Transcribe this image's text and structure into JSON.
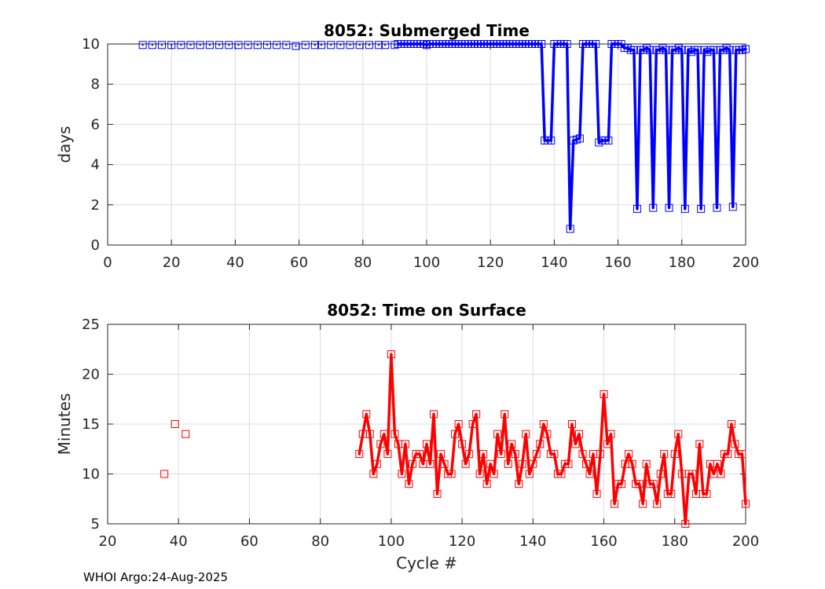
{
  "footer": "WHOI Argo:24-Aug-2025",
  "chart_data": [
    {
      "type": "line",
      "title": "8052: Submerged Time",
      "xlabel": "",
      "ylabel": "days",
      "xlim": [
        0,
        200
      ],
      "ylim": [
        0,
        10
      ],
      "xticks": [
        0,
        20,
        40,
        60,
        80,
        100,
        120,
        140,
        160,
        180,
        200
      ],
      "yticks": [
        0,
        2,
        4,
        6,
        8,
        10
      ],
      "grid": true,
      "color": "#0000ff",
      "marker": "square",
      "isolated_points": [
        [
          11,
          9.95
        ],
        [
          14,
          9.95
        ],
        [
          17,
          9.95
        ],
        [
          20,
          9.95
        ],
        [
          23,
          9.95
        ],
        [
          26,
          9.95
        ],
        [
          29,
          9.95
        ],
        [
          32,
          9.95
        ],
        [
          35,
          9.95
        ],
        [
          38,
          9.95
        ],
        [
          41,
          9.95
        ],
        [
          44,
          9.95
        ],
        [
          47,
          9.95
        ],
        [
          50,
          9.95
        ],
        [
          53,
          9.95
        ],
        [
          56,
          9.95
        ],
        [
          59,
          9.9
        ],
        [
          62,
          9.95
        ],
        [
          65,
          9.95
        ],
        [
          67,
          9.95
        ],
        [
          70,
          9.95
        ],
        [
          73,
          9.95
        ],
        [
          76,
          9.95
        ],
        [
          79,
          9.95
        ],
        [
          82,
          9.95
        ],
        [
          85,
          9.95
        ],
        [
          87,
          9.95
        ],
        [
          90,
          9.95
        ]
      ],
      "series": [
        [
          91,
          10
        ],
        [
          92,
          10
        ],
        [
          93,
          10
        ],
        [
          94,
          10
        ],
        [
          95,
          10
        ],
        [
          96,
          10
        ],
        [
          97,
          10
        ],
        [
          98,
          10
        ],
        [
          99,
          10
        ],
        [
          100,
          9.95
        ],
        [
          101,
          10
        ],
        [
          102,
          10
        ],
        [
          103,
          10
        ],
        [
          104,
          10
        ],
        [
          105,
          10
        ],
        [
          106,
          10
        ],
        [
          107,
          10
        ],
        [
          108,
          10
        ],
        [
          109,
          10
        ],
        [
          110,
          10
        ],
        [
          111,
          10
        ],
        [
          112,
          10
        ],
        [
          113,
          10
        ],
        [
          114,
          10
        ],
        [
          115,
          10
        ],
        [
          116,
          10
        ],
        [
          117,
          10
        ],
        [
          118,
          10
        ],
        [
          119,
          10
        ],
        [
          120,
          10
        ],
        [
          121,
          10
        ],
        [
          122,
          10
        ],
        [
          123,
          10
        ],
        [
          124,
          10
        ],
        [
          125,
          10
        ],
        [
          126,
          10
        ],
        [
          127,
          10
        ],
        [
          128,
          10
        ],
        [
          129,
          10
        ],
        [
          130,
          10
        ],
        [
          131,
          10
        ],
        [
          132,
          10
        ],
        [
          133,
          10
        ],
        [
          134,
          10
        ],
        [
          135,
          10
        ],
        [
          136,
          10
        ],
        [
          137,
          5.2
        ],
        [
          138,
          5.2
        ],
        [
          139,
          5.2
        ],
        [
          140,
          10
        ],
        [
          141,
          10
        ],
        [
          142,
          10
        ],
        [
          143,
          10
        ],
        [
          144,
          10
        ],
        [
          145,
          0.8
        ],
        [
          146,
          5.2
        ],
        [
          147,
          5.25
        ],
        [
          148,
          5.3
        ],
        [
          149,
          10
        ],
        [
          150,
          10
        ],
        [
          151,
          10
        ],
        [
          152,
          10
        ],
        [
          153,
          10
        ],
        [
          154,
          5.1
        ],
        [
          155,
          5.2
        ],
        [
          156,
          5.2
        ],
        [
          157,
          5.2
        ],
        [
          158,
          10
        ],
        [
          159,
          10
        ],
        [
          160,
          10
        ],
        [
          161,
          10
        ],
        [
          162,
          9.8
        ],
        [
          163,
          9.8
        ],
        [
          164,
          9.7
        ],
        [
          165,
          9.7
        ],
        [
          166,
          1.8
        ],
        [
          167,
          9.7
        ],
        [
          168,
          9.7
        ],
        [
          169,
          9.8
        ],
        [
          170,
          9.7
        ],
        [
          171,
          1.85
        ],
        [
          172,
          9.7
        ],
        [
          173,
          9.7
        ],
        [
          174,
          9.8
        ],
        [
          175,
          9.7
        ],
        [
          176,
          1.85
        ],
        [
          177,
          9.7
        ],
        [
          178,
          9.7
        ],
        [
          179,
          9.8
        ],
        [
          180,
          9.7
        ],
        [
          181,
          1.8
        ],
        [
          182,
          9.7
        ],
        [
          183,
          9.6
        ],
        [
          184,
          9.7
        ],
        [
          185,
          9.7
        ],
        [
          186,
          1.8
        ],
        [
          187,
          9.7
        ],
        [
          188,
          9.6
        ],
        [
          189,
          9.7
        ],
        [
          190,
          9.7
        ],
        [
          191,
          1.85
        ],
        [
          192,
          9.7
        ],
        [
          193,
          9.7
        ],
        [
          194,
          9.8
        ],
        [
          195,
          9.7
        ],
        [
          196,
          1.9
        ],
        [
          197,
          9.7
        ],
        [
          198,
          9.7
        ],
        [
          199,
          9.7
        ],
        [
          200,
          9.75
        ]
      ]
    },
    {
      "type": "line",
      "title": "8052: Time on Surface",
      "xlabel": "Cycle #",
      "ylabel": "Minutes",
      "xlim": [
        20,
        200
      ],
      "ylim": [
        5,
        25
      ],
      "xticks": [
        20,
        40,
        60,
        80,
        100,
        120,
        140,
        160,
        180,
        200
      ],
      "yticks": [
        5,
        10,
        15,
        20,
        25
      ],
      "grid": true,
      "color": "#ff0000",
      "marker": "square",
      "isolated_points": [
        [
          36,
          10
        ],
        [
          39,
          15
        ],
        [
          42,
          14
        ]
      ],
      "series": [
        [
          91,
          12
        ],
        [
          92,
          14
        ],
        [
          93,
          16
        ],
        [
          94,
          14
        ],
        [
          95,
          10
        ],
        [
          96,
          11
        ],
        [
          97,
          13
        ],
        [
          98,
          14
        ],
        [
          99,
          12
        ],
        [
          100,
          22
        ],
        [
          101,
          14
        ],
        [
          102,
          13
        ],
        [
          103,
          10
        ],
        [
          104,
          13
        ],
        [
          105,
          9
        ],
        [
          106,
          11
        ],
        [
          107,
          12
        ],
        [
          108,
          12
        ],
        [
          109,
          11
        ],
        [
          110,
          13
        ],
        [
          111,
          11
        ],
        [
          112,
          16
        ],
        [
          113,
          8
        ],
        [
          114,
          12
        ],
        [
          115,
          11
        ],
        [
          116,
          10
        ],
        [
          117,
          10
        ],
        [
          118,
          14
        ],
        [
          119,
          15
        ],
        [
          120,
          13
        ],
        [
          121,
          11
        ],
        [
          122,
          12
        ],
        [
          123,
          15
        ],
        [
          124,
          16
        ],
        [
          125,
          10
        ],
        [
          126,
          12
        ],
        [
          127,
          9
        ],
        [
          128,
          11
        ],
        [
          129,
          10
        ],
        [
          130,
          14
        ],
        [
          131,
          12
        ],
        [
          132,
          16
        ],
        [
          133,
          11
        ],
        [
          134,
          13
        ],
        [
          135,
          12
        ],
        [
          136,
          9
        ],
        [
          137,
          11
        ],
        [
          138,
          14
        ],
        [
          139,
          10
        ],
        [
          140,
          11
        ],
        [
          141,
          12
        ],
        [
          142,
          13
        ],
        [
          143,
          15
        ],
        [
          144,
          14
        ],
        [
          145,
          12
        ],
        [
          146,
          12
        ],
        [
          147,
          10
        ],
        [
          148,
          10
        ],
        [
          149,
          11
        ],
        [
          150,
          11
        ],
        [
          151,
          15
        ],
        [
          152,
          13
        ],
        [
          153,
          14
        ],
        [
          154,
          12
        ],
        [
          155,
          11
        ],
        [
          156,
          10
        ],
        [
          157,
          12
        ],
        [
          158,
          8
        ],
        [
          159,
          12
        ],
        [
          160,
          18
        ],
        [
          161,
          13
        ],
        [
          162,
          14
        ],
        [
          163,
          7
        ],
        [
          164,
          9
        ],
        [
          165,
          9
        ],
        [
          166,
          11
        ],
        [
          167,
          12
        ],
        [
          168,
          11
        ],
        [
          169,
          9
        ],
        [
          170,
          9
        ],
        [
          171,
          7
        ],
        [
          172,
          11
        ],
        [
          173,
          9
        ],
        [
          174,
          9
        ],
        [
          175,
          7
        ],
        [
          176,
          10
        ],
        [
          177,
          12
        ],
        [
          178,
          8
        ],
        [
          179,
          8
        ],
        [
          180,
          12
        ],
        [
          181,
          14
        ],
        [
          182,
          10
        ],
        [
          183,
          5
        ],
        [
          184,
          10
        ],
        [
          185,
          10
        ],
        [
          186,
          8
        ],
        [
          187,
          13
        ],
        [
          188,
          8
        ],
        [
          189,
          8
        ],
        [
          190,
          11
        ],
        [
          191,
          10
        ],
        [
          192,
          11
        ],
        [
          193,
          10
        ],
        [
          194,
          12
        ],
        [
          195,
          12
        ],
        [
          196,
          15
        ],
        [
          197,
          13
        ],
        [
          198,
          12
        ],
        [
          199,
          12
        ],
        [
          200,
          7
        ]
      ]
    }
  ]
}
